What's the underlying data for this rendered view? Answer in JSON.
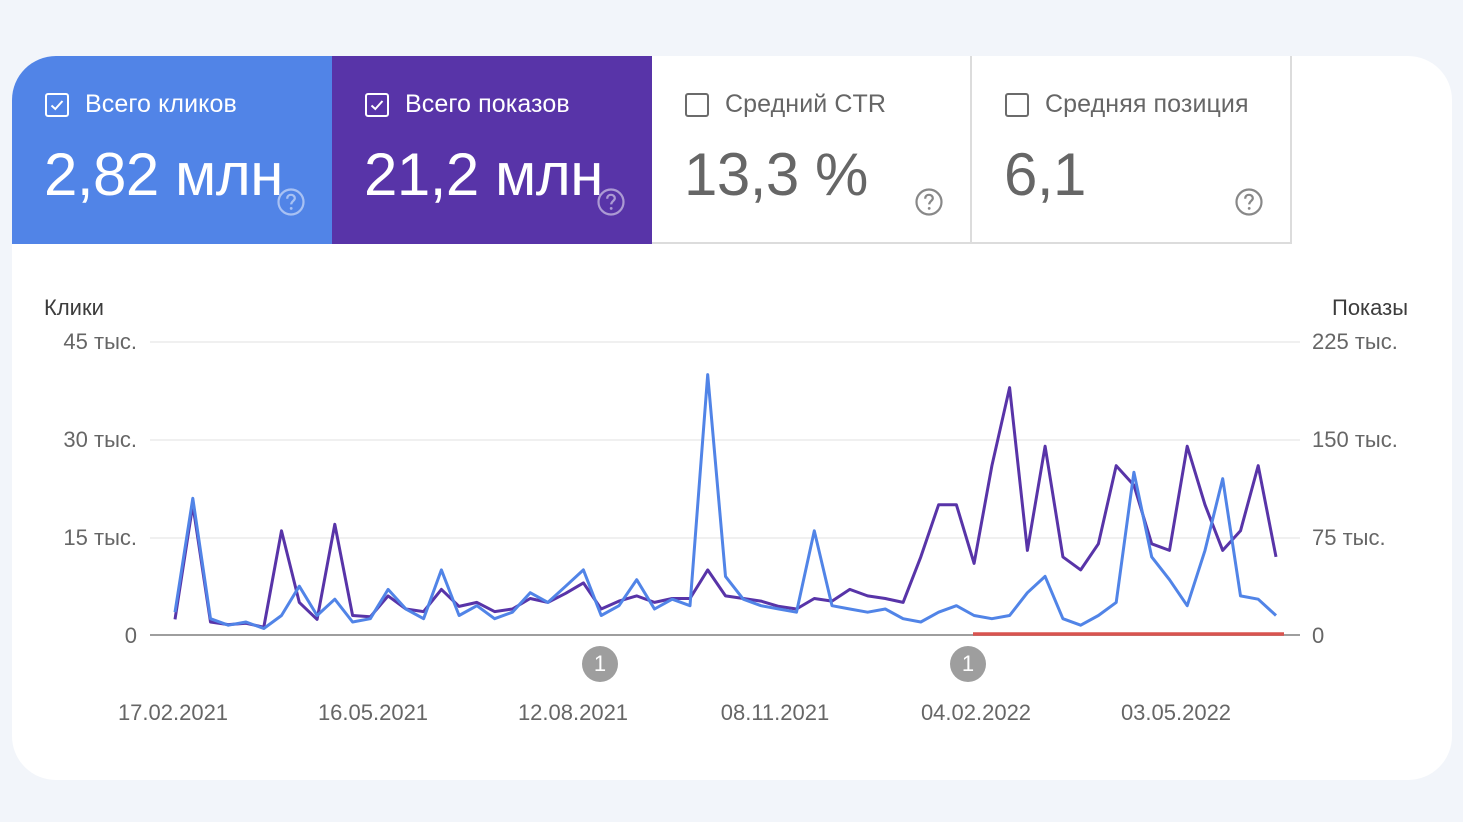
{
  "metrics": [
    {
      "label": "Всего кликов",
      "value": "2,82 млн",
      "checked": true,
      "color": "#5184e7"
    },
    {
      "label": "Всего показов",
      "value": "21,2 млн",
      "checked": true,
      "color": "#5834a8"
    },
    {
      "label": "Средний CTR",
      "value": "13,3 %",
      "checked": false
    },
    {
      "label": "Средняя позиция",
      "value": "6,1",
      "checked": false
    }
  ],
  "chart": {
    "left_axis_title": "Клики",
    "right_axis_title": "Показы",
    "left_ticks": [
      "45 тыс.",
      "30 тыс.",
      "15 тыс.",
      "0"
    ],
    "right_ticks": [
      "225 тыс.",
      "150 тыс.",
      "75 тыс.",
      "0"
    ],
    "x_ticks": [
      "17.02.2021",
      "16.05.2021",
      "12.08.2021",
      "08.11.2021",
      "04.02.2022",
      "03.05.2022"
    ],
    "annotations": [
      "1",
      "1"
    ]
  },
  "chart_data": {
    "type": "line",
    "title": "",
    "xlabel": "",
    "ylabel": "Клики",
    "y2label": "Показы",
    "ylim": [
      0,
      45000
    ],
    "y2lim": [
      0,
      225000
    ],
    "grid": true,
    "x_ticks": [
      "17.02.2021",
      "16.05.2021",
      "12.08.2021",
      "08.11.2021",
      "04.02.2022",
      "03.05.2022"
    ],
    "x_range": [
      "17.02.2021",
      "~02.07.2022"
    ],
    "annotations": [
      {
        "label": "1",
        "date": "~23.08.2021"
      },
      {
        "label": "1",
        "date": "~07.02.2022"
      }
    ],
    "highlight_range": {
      "color": "#d9534f",
      "from": "~02.02.2022",
      "to": "end"
    },
    "series": [
      {
        "name": "Клики",
        "axis": "left",
        "color": "#5184e7",
        "x": [
          "2021-02-17",
          "2021-02-25",
          "2021-03-05",
          "2021-03-13",
          "2021-03-21",
          "2021-03-29",
          "2021-04-06",
          "2021-04-14",
          "2021-04-22",
          "2021-04-30",
          "2021-05-08",
          "2021-05-16",
          "2021-05-24",
          "2021-06-01",
          "2021-06-09",
          "2021-06-17",
          "2021-06-25",
          "2021-07-03",
          "2021-07-11",
          "2021-07-19",
          "2021-07-27",
          "2021-08-04",
          "2021-08-12",
          "2021-08-20",
          "2021-08-28",
          "2021-09-05",
          "2021-09-13",
          "2021-09-21",
          "2021-09-29",
          "2021-10-07",
          "2021-10-15",
          "2021-10-23",
          "2021-10-31",
          "2021-11-08",
          "2021-11-16",
          "2021-11-24",
          "2021-12-02",
          "2021-12-10",
          "2021-12-18",
          "2021-12-26",
          "2022-01-03",
          "2022-01-11",
          "2022-01-19",
          "2022-01-27",
          "2022-02-04",
          "2022-02-12",
          "2022-02-20",
          "2022-02-28",
          "2022-03-08",
          "2022-03-16",
          "2022-03-24",
          "2022-04-01",
          "2022-04-09",
          "2022-04-17",
          "2022-04-25",
          "2022-05-03",
          "2022-05-11",
          "2022-05-19",
          "2022-05-27",
          "2022-06-04",
          "2022-06-12",
          "2022-06-20",
          "2022-06-28"
        ],
        "values": [
          3500,
          21000,
          2500,
          1500,
          2000,
          1000,
          3000,
          7500,
          3000,
          5500,
          2000,
          2500,
          7000,
          4000,
          2500,
          10000,
          3000,
          4500,
          2500,
          3500,
          6500,
          5000,
          7500,
          10000,
          3000,
          4500,
          8500,
          4000,
          5500,
          4500,
          40000,
          9000,
          5500,
          4500,
          4000,
          3500,
          16000,
          4500,
          4000,
          3500,
          4000,
          2500,
          2000,
          3500,
          4500,
          3000,
          2500,
          3000,
          6500,
          9000,
          2500,
          1500,
          3000,
          5000,
          25000,
          12000,
          8500,
          4500,
          13000,
          24000,
          6000,
          5500,
          3000
        ]
      },
      {
        "name": "Показы",
        "axis": "right",
        "color": "#5834a8",
        "x": [
          "2021-02-17",
          "2021-02-25",
          "2021-03-05",
          "2021-03-13",
          "2021-03-21",
          "2021-03-29",
          "2021-04-06",
          "2021-04-14",
          "2021-04-22",
          "2021-04-30",
          "2021-05-08",
          "2021-05-16",
          "2021-05-24",
          "2021-06-01",
          "2021-06-09",
          "2021-06-17",
          "2021-06-25",
          "2021-07-03",
          "2021-07-11",
          "2021-07-19",
          "2021-07-27",
          "2021-08-04",
          "2021-08-12",
          "2021-08-20",
          "2021-08-28",
          "2021-09-05",
          "2021-09-13",
          "2021-09-21",
          "2021-09-29",
          "2021-10-07",
          "2021-10-15",
          "2021-10-23",
          "2021-10-31",
          "2021-11-08",
          "2021-11-16",
          "2021-11-24",
          "2021-12-02",
          "2021-12-10",
          "2021-12-18",
          "2021-12-26",
          "2022-01-03",
          "2022-01-11",
          "2022-01-19",
          "2022-01-27",
          "2022-02-04",
          "2022-02-12",
          "2022-02-20",
          "2022-02-28",
          "2022-03-08",
          "2022-03-16",
          "2022-03-24",
          "2022-04-01",
          "2022-04-09",
          "2022-04-17",
          "2022-04-25",
          "2022-05-03",
          "2022-05-11",
          "2022-05-19",
          "2022-05-27",
          "2022-06-04",
          "2022-06-12",
          "2022-06-20",
          "2022-06-28"
        ],
        "values": [
          12000,
          100000,
          10000,
          8000,
          9000,
          6000,
          80000,
          25000,
          12000,
          85000,
          15000,
          14000,
          30000,
          20000,
          18000,
          35000,
          22000,
          25000,
          18000,
          20000,
          28000,
          25000,
          32000,
          40000,
          20000,
          26000,
          30000,
          25000,
          28000,
          28000,
          50000,
          30000,
          28000,
          26000,
          22000,
          20000,
          28000,
          26000,
          35000,
          30000,
          28000,
          25000,
          60000,
          100000,
          100000,
          55000,
          130000,
          190000,
          65000,
          145000,
          60000,
          50000,
          70000,
          130000,
          115000,
          70000,
          65000,
          145000,
          100000,
          65000,
          80000,
          130000,
          60000
        ]
      }
    ]
  }
}
